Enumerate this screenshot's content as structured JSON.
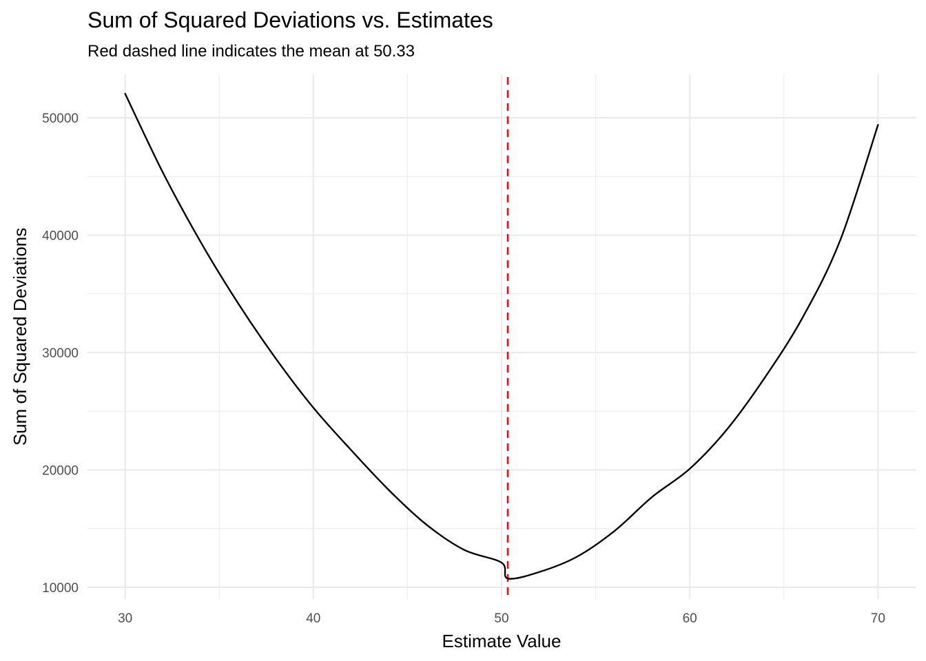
{
  "chart_data": {
    "type": "line",
    "title": "Sum of Squared Deviations vs. Estimates",
    "subtitle": "Red dashed line indicates the mean at 50.33",
    "xlabel": "Estimate Value",
    "ylabel": "Sum of Squared Deviations",
    "xlim": [
      28,
      72
    ],
    "ylim": [
      9000,
      53700
    ],
    "x_ticks": [
      30,
      40,
      50,
      60,
      70
    ],
    "x_minor_ticks": [
      35,
      45,
      55,
      65
    ],
    "y_ticks": [
      10000,
      20000,
      30000,
      40000,
      50000
    ],
    "y_minor_ticks": [
      15000,
      25000,
      35000,
      45000
    ],
    "x_tick_labels": [
      "30",
      "40",
      "50",
      "60",
      "70"
    ],
    "y_tick_labels": [
      "10000",
      "20000",
      "30000",
      "40000",
      "50000"
    ],
    "grid": true,
    "series": [
      {
        "color": "#000000",
        "x": [
          30,
          32,
          34,
          36,
          38,
          40,
          42,
          44,
          46,
          48,
          50,
          50.33,
          52,
          54,
          56,
          58,
          60,
          62,
          64,
          66,
          68,
          70
        ],
        "y": [
          52050,
          45350,
          39450,
          34200,
          29500,
          25300,
          21700,
          18300,
          15350,
          13200,
          12100,
          10750,
          11300,
          12600,
          14800,
          17700,
          20100,
          23500,
          27900,
          33000,
          39600,
          49400
        ]
      }
    ],
    "annotations": [
      {
        "type": "vline",
        "x": 50.33,
        "color": "#ff0000",
        "style": "dashed"
      }
    ]
  }
}
